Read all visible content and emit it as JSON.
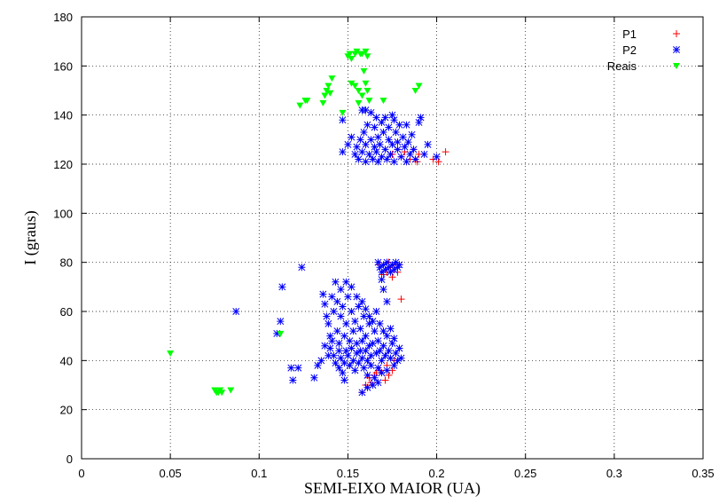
{
  "chart_data": {
    "type": "scatter",
    "xlabel": "SEMI-EIXO MAIOR (UA)",
    "ylabel": "I (graus)",
    "xlim": [
      0,
      0.35
    ],
    "ylim": [
      0,
      180
    ],
    "x_ticks": [
      "0",
      "0.05",
      "0.1",
      "0.15",
      "0.2",
      "0.25",
      "0.3",
      "0.35"
    ],
    "y_ticks": [
      "0",
      "20",
      "40",
      "60",
      "80",
      "100",
      "120",
      "140",
      "160",
      "180"
    ],
    "grid": true,
    "legend_position": "top-right",
    "series": [
      {
        "name": "P1",
        "marker": "plus",
        "color": "#ff0000",
        "points": [
          [
            0.162,
            33
          ],
          [
            0.165,
            34
          ],
          [
            0.166,
            35
          ],
          [
            0.168,
            36
          ],
          [
            0.171,
            32
          ],
          [
            0.173,
            34
          ],
          [
            0.175,
            36
          ],
          [
            0.158,
            27
          ],
          [
            0.16,
            30
          ],
          [
            0.163,
            31
          ],
          [
            0.172,
            38
          ],
          [
            0.176,
            40
          ],
          [
            0.17,
            75
          ],
          [
            0.172,
            76
          ],
          [
            0.174,
            77
          ],
          [
            0.176,
            78
          ],
          [
            0.178,
            76
          ],
          [
            0.179,
            79
          ],
          [
            0.18,
            65
          ],
          [
            0.173,
            80
          ],
          [
            0.175,
            74
          ],
          [
            0.168,
            79
          ],
          [
            0.172,
            122
          ],
          [
            0.175,
            124
          ],
          [
            0.178,
            126
          ],
          [
            0.18,
            123
          ],
          [
            0.182,
            125
          ],
          [
            0.185,
            122
          ],
          [
            0.187,
            126
          ],
          [
            0.189,
            121
          ],
          [
            0.19,
            124
          ],
          [
            0.198,
            122
          ],
          [
            0.201,
            121
          ],
          [
            0.205,
            125
          ]
        ]
      },
      {
        "name": "P2",
        "marker": "star",
        "color": "#0000ff",
        "points": [
          [
            0.087,
            60
          ],
          [
            0.11,
            51
          ],
          [
            0.112,
            56
          ],
          [
            0.113,
            70
          ],
          [
            0.118,
            37
          ],
          [
            0.119,
            32
          ],
          [
            0.122,
            37
          ],
          [
            0.124,
            78
          ],
          [
            0.131,
            33
          ],
          [
            0.133,
            38
          ],
          [
            0.136,
            67
          ],
          [
            0.137,
            63
          ],
          [
            0.138,
            58
          ],
          [
            0.139,
            55
          ],
          [
            0.14,
            50
          ],
          [
            0.14,
            45
          ],
          [
            0.141,
            66
          ],
          [
            0.142,
            60
          ],
          [
            0.142,
            42
          ],
          [
            0.143,
            39
          ],
          [
            0.143,
            72
          ],
          [
            0.144,
            64
          ],
          [
            0.144,
            52
          ],
          [
            0.145,
            47
          ],
          [
            0.145,
            44
          ],
          [
            0.146,
            41
          ],
          [
            0.146,
            58
          ],
          [
            0.147,
            62
          ],
          [
            0.147,
            35
          ],
          [
            0.148,
            50
          ],
          [
            0.148,
            39
          ],
          [
            0.149,
            55
          ],
          [
            0.149,
            44
          ],
          [
            0.15,
            42
          ],
          [
            0.15,
            66
          ],
          [
            0.151,
            48
          ],
          [
            0.151,
            38
          ],
          [
            0.152,
            60
          ],
          [
            0.152,
            45
          ],
          [
            0.153,
            40
          ],
          [
            0.153,
            52
          ],
          [
            0.154,
            36
          ],
          [
            0.154,
            56
          ],
          [
            0.155,
            43
          ],
          [
            0.155,
            47
          ],
          [
            0.156,
            39
          ],
          [
            0.156,
            62
          ],
          [
            0.157,
            44
          ],
          [
            0.157,
            53
          ],
          [
            0.158,
            41
          ],
          [
            0.158,
            48
          ],
          [
            0.159,
            37
          ],
          [
            0.159,
            58
          ],
          [
            0.16,
            44
          ],
          [
            0.16,
            50
          ],
          [
            0.161,
            40
          ],
          [
            0.161,
            34
          ],
          [
            0.162,
            46
          ],
          [
            0.162,
            55
          ],
          [
            0.163,
            42
          ],
          [
            0.163,
            38
          ],
          [
            0.164,
            47
          ],
          [
            0.165,
            33
          ],
          [
            0.165,
            52
          ],
          [
            0.166,
            43
          ],
          [
            0.167,
            48
          ],
          [
            0.167,
            37
          ],
          [
            0.168,
            44
          ],
          [
            0.169,
            40
          ],
          [
            0.169,
            35
          ],
          [
            0.17,
            46
          ],
          [
            0.171,
            42
          ],
          [
            0.172,
            36
          ],
          [
            0.173,
            44
          ],
          [
            0.174,
            41
          ],
          [
            0.175,
            47
          ],
          [
            0.176,
            38
          ],
          [
            0.177,
            43
          ],
          [
            0.178,
            40
          ],
          [
            0.179,
            45
          ],
          [
            0.18,
            41
          ],
          [
            0.161,
            29
          ],
          [
            0.164,
            30
          ],
          [
            0.167,
            31
          ],
          [
            0.158,
            27
          ],
          [
            0.148,
            32
          ],
          [
            0.145,
            37
          ],
          [
            0.141,
            48
          ],
          [
            0.139,
            42
          ],
          [
            0.137,
            46
          ],
          [
            0.135,
            40
          ],
          [
            0.152,
            70
          ],
          [
            0.149,
            72
          ],
          [
            0.146,
            69
          ],
          [
            0.155,
            66
          ],
          [
            0.158,
            64
          ],
          [
            0.16,
            61
          ],
          [
            0.162,
            58
          ],
          [
            0.164,
            56
          ],
          [
            0.166,
            60
          ],
          [
            0.168,
            55
          ],
          [
            0.17,
            52
          ],
          [
            0.172,
            50
          ],
          [
            0.174,
            53
          ],
          [
            0.176,
            49
          ],
          [
            0.167,
            80
          ],
          [
            0.168,
            78
          ],
          [
            0.169,
            76
          ],
          [
            0.17,
            79
          ],
          [
            0.171,
            77
          ],
          [
            0.172,
            80
          ],
          [
            0.173,
            78
          ],
          [
            0.174,
            76
          ],
          [
            0.175,
            79
          ],
          [
            0.176,
            77
          ],
          [
            0.177,
            80
          ],
          [
            0.178,
            78
          ],
          [
            0.179,
            79
          ],
          [
            0.17,
            69
          ],
          [
            0.172,
            64
          ],
          [
            0.169,
            73
          ],
          [
            0.147,
            125
          ],
          [
            0.15,
            128
          ],
          [
            0.152,
            131
          ],
          [
            0.154,
            124
          ],
          [
            0.155,
            127
          ],
          [
            0.156,
            122
          ],
          [
            0.157,
            130
          ],
          [
            0.158,
            125
          ],
          [
            0.159,
            133
          ],
          [
            0.16,
            121
          ],
          [
            0.16,
            128
          ],
          [
            0.161,
            136
          ],
          [
            0.162,
            124
          ],
          [
            0.163,
            130
          ],
          [
            0.163,
            141
          ],
          [
            0.164,
            122
          ],
          [
            0.165,
            127
          ],
          [
            0.165,
            135
          ],
          [
            0.166,
            125
          ],
          [
            0.167,
            131
          ],
          [
            0.167,
            121
          ],
          [
            0.168,
            128
          ],
          [
            0.169,
            137
          ],
          [
            0.169,
            123
          ],
          [
            0.17,
            133
          ],
          [
            0.171,
            126
          ],
          [
            0.171,
            139
          ],
          [
            0.172,
            122
          ],
          [
            0.173,
            130
          ],
          [
            0.173,
            135
          ],
          [
            0.174,
            124
          ],
          [
            0.175,
            128
          ],
          [
            0.176,
            138
          ],
          [
            0.176,
            121
          ],
          [
            0.177,
            133
          ],
          [
            0.178,
            126
          ],
          [
            0.178,
            129
          ],
          [
            0.179,
            136
          ],
          [
            0.18,
            123
          ],
          [
            0.181,
            131
          ],
          [
            0.182,
            127
          ],
          [
            0.183,
            121
          ],
          [
            0.184,
            129
          ],
          [
            0.185,
            124
          ],
          [
            0.186,
            132
          ],
          [
            0.187,
            126
          ],
          [
            0.188,
            122
          ],
          [
            0.19,
            137
          ],
          [
            0.191,
            139
          ],
          [
            0.193,
            124
          ],
          [
            0.195,
            128
          ],
          [
            0.2,
            123
          ],
          [
            0.147,
            138
          ],
          [
            0.158,
            142
          ],
          [
            0.16,
            142
          ],
          [
            0.175,
            140
          ],
          [
            0.166,
            139
          ],
          [
            0.183,
            136
          ]
        ]
      },
      {
        "name": "Reais",
        "marker": "triangle-down",
        "color": "#00ff00",
        "points": [
          [
            0.05,
            43
          ],
          [
            0.075,
            28
          ],
          [
            0.076,
            27
          ],
          [
            0.077,
            27
          ],
          [
            0.078,
            28
          ],
          [
            0.079,
            27
          ],
          [
            0.084,
            28
          ],
          [
            0.112,
            51
          ],
          [
            0.123,
            144
          ],
          [
            0.126,
            146
          ],
          [
            0.127,
            146
          ],
          [
            0.136,
            145
          ],
          [
            0.137,
            148
          ],
          [
            0.138,
            150
          ],
          [
            0.139,
            152
          ],
          [
            0.14,
            149
          ],
          [
            0.141,
            155
          ],
          [
            0.147,
            141
          ],
          [
            0.15,
            164
          ],
          [
            0.151,
            165
          ],
          [
            0.152,
            163
          ],
          [
            0.154,
            165
          ],
          [
            0.155,
            166
          ],
          [
            0.157,
            165
          ],
          [
            0.158,
            165
          ],
          [
            0.16,
            166
          ],
          [
            0.161,
            164
          ],
          [
            0.154,
            152
          ],
          [
            0.156,
            150
          ],
          [
            0.158,
            148
          ],
          [
            0.159,
            158
          ],
          [
            0.16,
            153
          ],
          [
            0.161,
            150
          ],
          [
            0.162,
            146
          ],
          [
            0.156,
            145
          ],
          [
            0.152,
            153
          ],
          [
            0.17,
            146
          ],
          [
            0.188,
            150
          ],
          [
            0.19,
            152
          ]
        ]
      }
    ]
  }
}
